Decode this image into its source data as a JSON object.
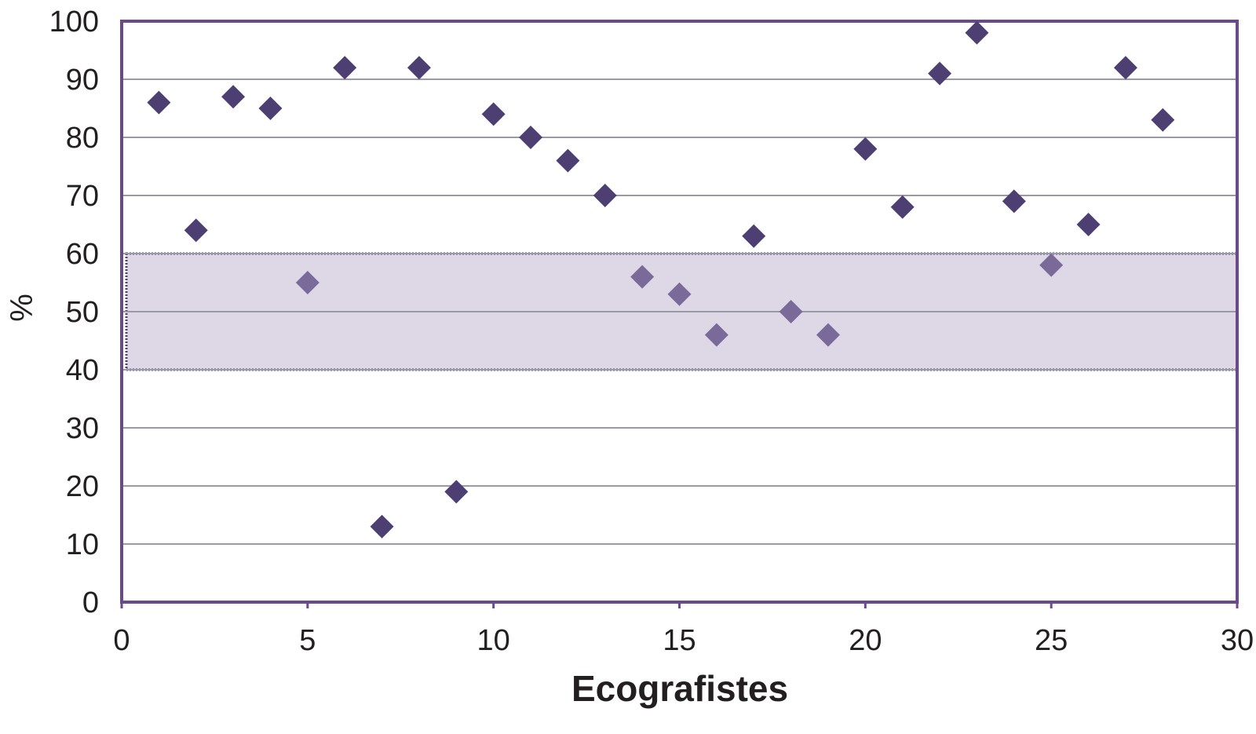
{
  "chart_data": {
    "type": "scatter",
    "title": "",
    "xlabel": "Ecografistes",
    "ylabel": "%",
    "xlim": [
      0,
      30
    ],
    "ylim": [
      0,
      100
    ],
    "x_ticks": [
      0,
      5,
      10,
      15,
      20,
      25,
      30
    ],
    "y_ticks": [
      0,
      10,
      20,
      30,
      40,
      50,
      60,
      70,
      80,
      90,
      100
    ],
    "grid": "horizontal",
    "legend": "none",
    "reference_band": {
      "from": 40,
      "to": 60
    },
    "colors": {
      "marker": "#4e3f73",
      "marker_in_band": "#7a6a9a",
      "band_fill": "#ddd7e6",
      "band_border": "#4e3f73",
      "axis": "#6a4a8a",
      "grid": "#9a9aa6",
      "text": "#231f20"
    },
    "series": [
      {
        "points": [
          {
            "x": 1,
            "y": 86
          },
          {
            "x": 2,
            "y": 64
          },
          {
            "x": 3,
            "y": 87
          },
          {
            "x": 4,
            "y": 85
          },
          {
            "x": 5,
            "y": 55
          },
          {
            "x": 6,
            "y": 92
          },
          {
            "x": 7,
            "y": 13
          },
          {
            "x": 8,
            "y": 92
          },
          {
            "x": 9,
            "y": 19
          },
          {
            "x": 10,
            "y": 84
          },
          {
            "x": 11,
            "y": 80
          },
          {
            "x": 12,
            "y": 76
          },
          {
            "x": 13,
            "y": 70
          },
          {
            "x": 14,
            "y": 56
          },
          {
            "x": 15,
            "y": 53
          },
          {
            "x": 16,
            "y": 46
          },
          {
            "x": 17,
            "y": 63
          },
          {
            "x": 18,
            "y": 50
          },
          {
            "x": 19,
            "y": 46
          },
          {
            "x": 20,
            "y": 78
          },
          {
            "x": 21,
            "y": 68
          },
          {
            "x": 22,
            "y": 91
          },
          {
            "x": 23,
            "y": 98
          },
          {
            "x": 24,
            "y": 69
          },
          {
            "x": 25,
            "y": 58
          },
          {
            "x": 26,
            "y": 65
          },
          {
            "x": 27,
            "y": 92
          },
          {
            "x": 28,
            "y": 83
          }
        ]
      }
    ]
  }
}
